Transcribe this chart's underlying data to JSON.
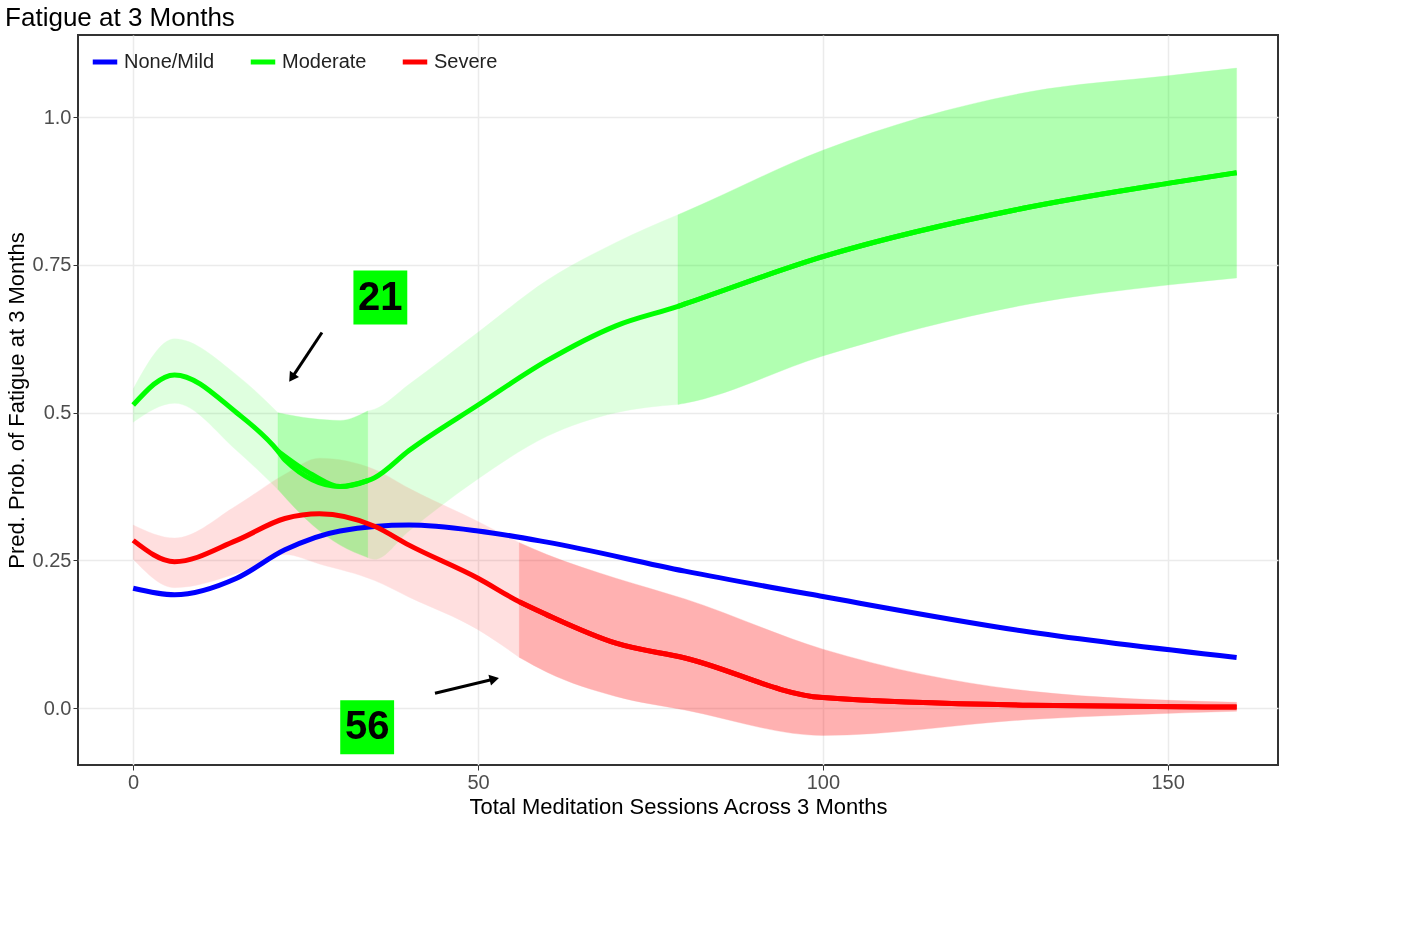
{
  "chart_data": {
    "type": "line",
    "title": "Fatigue at 3 Months",
    "xlabel": "Total Meditation Sessions Across 3 Months",
    "ylabel": "Pred. Prob. of Fatigue at 3 Months",
    "xlim": [
      -8,
      166
    ],
    "ylim": [
      -0.096,
      1.139
    ],
    "xticks": [
      0,
      50,
      100,
      150
    ],
    "yticks": [
      {
        "value": 0,
        "label": "0.0"
      },
      0.25,
      {
        "value": 0.5,
        "label": "0.5"
      },
      0.75,
      {
        "value": 1,
        "label": "1.0"
      }
    ],
    "grid": true,
    "legend": "top left",
    "series": [
      {
        "name": "None/Mild",
        "color": "#0000ff",
        "x": [
          0,
          6,
          15,
          22,
          30,
          40,
          50,
          60,
          80,
          100,
          130,
          160
        ],
        "values": [
          0.203,
          0.192,
          0.22,
          0.268,
          0.3,
          0.31,
          0.3,
          0.281,
          0.232,
          0.189,
          0.129,
          0.086
        ]
      },
      {
        "name": "Moderate",
        "color": "#00ff00",
        "x": [
          0,
          6,
          15,
          21,
          22,
          30,
          34,
          35,
          40,
          50,
          60,
          70,
          79,
          80,
          100,
          130,
          150,
          160
        ],
        "values": [
          0.513,
          0.564,
          0.5,
          0.435,
          0.42,
          0.375,
          0.385,
          0.39,
          0.436,
          0.513,
          0.588,
          0.647,
          0.68,
          0.684,
          0.764,
          0.848,
          0.888,
          0.906
        ],
        "lower": [
          0.484,
          0.516,
          0.436,
          0.37,
          null,
          null,
          0.255,
          0.252,
          0.3,
          0.388,
          0.46,
          0.5,
          0.514,
          null,
          null,
          null,
          null,
          null
        ],
        "upper": [
          0.54,
          0.625,
          0.564,
          0.5,
          null,
          null,
          0.503,
          0.506,
          0.548,
          0.636,
          0.724,
          0.788,
          0.835,
          null,
          null,
          null,
          null,
          null
        ]
      },
      {
        "name": "Severe",
        "color": "#ff0000",
        "x": [
          0,
          6,
          15,
          22,
          27,
          35,
          40,
          50,
          56,
          60,
          70,
          80,
          100,
          130,
          160
        ],
        "values": [
          0.284,
          0.248,
          0.284,
          0.321,
          0.329,
          0.308,
          0.276,
          0.22,
          0.18,
          0.158,
          0.11,
          0.085,
          0.018,
          0.005,
          0.002
        ],
        "lower": [
          0.252,
          0.204,
          0.228,
          0.26,
          0.244,
          0.216,
          0.188,
          0.133,
          0.086,
          null,
          null,
          null,
          null,
          null,
          null
        ],
        "upper": [
          0.31,
          0.288,
          0.343,
          0.396,
          0.423,
          0.404,
          0.372,
          0.316,
          0.28,
          null,
          null,
          null,
          null,
          null,
          null
        ]
      },
      {
        "color": "#00ff00",
        "x": [
          21,
          26,
          30,
          34
        ],
        "values": [
          0.435,
          0.395,
          0.375,
          0.385
        ],
        "lower": [
          0.37,
          0.31,
          0.276,
          0.255
        ],
        "upper": [
          0.5,
          0.49,
          0.487,
          0.503
        ]
      },
      {
        "color": "#00ff00",
        "x": [
          79,
          80,
          100,
          130,
          150,
          160
        ],
        "values": [
          0.68,
          0.684,
          0.764,
          0.848,
          0.888,
          0.906
        ],
        "lower": [
          0.514,
          0.516,
          0.596,
          0.684,
          0.716,
          0.728
        ],
        "upper": [
          0.835,
          0.84,
          0.944,
          1.043,
          1.07,
          1.083
        ]
      },
      {
        "color": "#ff0000",
        "x": [
          56,
          60,
          70,
          80,
          100,
          130,
          160
        ],
        "values": [
          0.18,
          0.158,
          0.11,
          0.085,
          0.018,
          0.005,
          0.002
        ],
        "lower": [
          0.086,
          0.061,
          0.02,
          -0.003,
          -0.046,
          -0.019,
          -0.005
        ],
        "upper": [
          0.28,
          0.26,
          0.22,
          0.185,
          0.1,
          0.029,
          0.01
        ]
      }
    ],
    "annotations": [
      "21",
      "56"
    ]
  }
}
